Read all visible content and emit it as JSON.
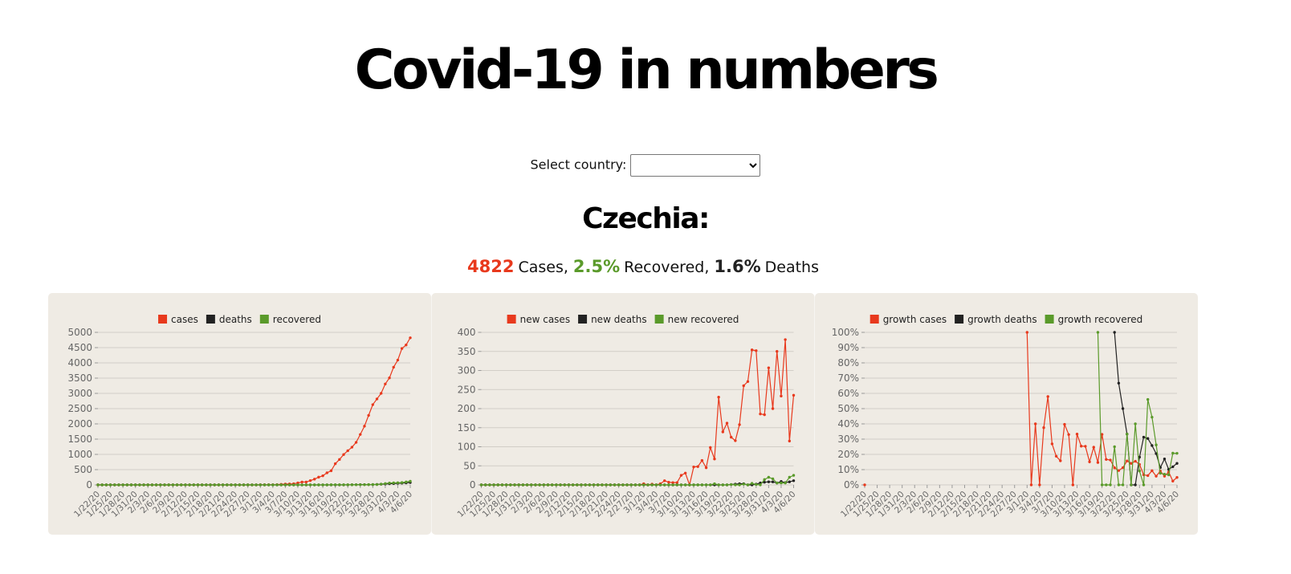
{
  "page": {
    "title": "Covid-19 in numbers",
    "select_label": "Select country:",
    "country": "Czechia:",
    "summary": [
      {
        "value": "4822",
        "text": "Cases,"
      },
      {
        "value": "2.5%",
        "text": "Recovered,"
      },
      {
        "value": "1.6%",
        "text": "Deaths"
      }
    ]
  },
  "chart_data": [
    {
      "type": "line",
      "categories": [
        "1/22/20",
        null,
        null,
        "1/25/20",
        null,
        null,
        "1/28/20",
        null,
        null,
        "1/31/20",
        null,
        null,
        "2/3/20",
        null,
        null,
        "2/6/20",
        null,
        null,
        "2/9/20",
        null,
        null,
        "2/12/20",
        null,
        null,
        "2/15/20",
        null,
        null,
        "2/18/20",
        null,
        null,
        "2/21/20",
        null,
        null,
        "2/24/20",
        null,
        null,
        "2/27/20",
        null,
        null,
        "3/1/20",
        null,
        null,
        "3/4/20",
        null,
        null,
        "3/7/20",
        null,
        null,
        "3/10/20",
        null,
        null,
        "3/13/20",
        null,
        null,
        "3/16/20",
        null,
        null,
        "3/19/20",
        null,
        null,
        "3/22/20",
        null,
        null,
        "3/25/20",
        null,
        null,
        "3/28/20",
        null,
        null,
        "3/31/20",
        null,
        null,
        "4/3/20",
        null,
        null,
        "4/6/20"
      ],
      "series": [
        {
          "name": "cases",
          "color": "#e8391d",
          "values": [
            0,
            0,
            0,
            0,
            0,
            0,
            0,
            0,
            0,
            0,
            0,
            0,
            0,
            0,
            0,
            0,
            0,
            0,
            0,
            0,
            0,
            0,
            0,
            0,
            0,
            0,
            0,
            0,
            0,
            0,
            0,
            0,
            0,
            0,
            0,
            0,
            0,
            0,
            0,
            3,
            3,
            5,
            5,
            8,
            19,
            26,
            32,
            38,
            63,
            94,
            94,
            141,
            189,
            253,
            298,
            396,
            464,
            694,
            833,
            995,
            1120,
            1236,
            1394,
            1654,
            1925,
            2279,
            2631,
            2817,
            3001,
            3308,
            3508,
            3858,
            4091,
            4472,
            4587,
            4822
          ]
        },
        {
          "name": "deaths",
          "color": "#222222",
          "values": [
            0,
            0,
            0,
            0,
            0,
            0,
            0,
            0,
            0,
            0,
            0,
            0,
            0,
            0,
            0,
            0,
            0,
            0,
            0,
            0,
            0,
            0,
            0,
            0,
            0,
            0,
            0,
            0,
            0,
            0,
            0,
            0,
            0,
            0,
            0,
            0,
            0,
            0,
            0,
            0,
            0,
            0,
            0,
            0,
            0,
            0,
            0,
            0,
            0,
            0,
            0,
            0,
            0,
            0,
            0,
            0,
            0,
            0,
            0,
            0,
            1,
            3,
            6,
            9,
            9,
            9,
            11,
            16,
            23,
            31,
            39,
            44,
            53,
            59,
            67,
            78
          ]
        },
        {
          "name": "recovered",
          "color": "#5a9a2a",
          "values": [
            0,
            0,
            0,
            0,
            0,
            0,
            0,
            0,
            0,
            0,
            0,
            0,
            0,
            0,
            0,
            0,
            0,
            0,
            0,
            0,
            0,
            0,
            0,
            0,
            0,
            0,
            0,
            0,
            0,
            0,
            0,
            0,
            0,
            0,
            0,
            0,
            0,
            0,
            0,
            0,
            0,
            0,
            0,
            0,
            0,
            0,
            0,
            0,
            0,
            0,
            0,
            0,
            0,
            0,
            0,
            0,
            3,
            3,
            3,
            3,
            4,
            4,
            4,
            6,
            6,
            10,
            11,
            11,
            25,
            45,
            61,
            66,
            71,
            76,
            96,
            121
          ]
        }
      ],
      "ylim": [
        0,
        5000
      ],
      "yticks": [
        0,
        500,
        1000,
        1500,
        2000,
        2500,
        3000,
        3500,
        4000,
        4500,
        5000
      ],
      "grid": true
    },
    {
      "type": "line",
      "categories": [
        "1/22/20",
        null,
        null,
        "1/25/20",
        null,
        null,
        "1/28/20",
        null,
        null,
        "1/31/20",
        null,
        null,
        "2/3/20",
        null,
        null,
        "2/6/20",
        null,
        null,
        "2/9/20",
        null,
        null,
        "2/12/20",
        null,
        null,
        "2/15/20",
        null,
        null,
        "2/18/20",
        null,
        null,
        "2/21/20",
        null,
        null,
        "2/24/20",
        null,
        null,
        "2/27/20",
        null,
        null,
        "3/1/20",
        null,
        null,
        "3/4/20",
        null,
        null,
        "3/7/20",
        null,
        null,
        "3/10/20",
        null,
        null,
        "3/13/20",
        null,
        null,
        "3/16/20",
        null,
        null,
        "3/19/20",
        null,
        null,
        "3/22/20",
        null,
        null,
        "3/25/20",
        null,
        null,
        "3/28/20",
        null,
        null,
        "3/31/20",
        null,
        null,
        "4/3/20",
        null,
        null,
        "4/6/20"
      ],
      "series": [
        {
          "name": "new cases",
          "color": "#e8391d",
          "values": [
            0,
            0,
            0,
            0,
            0,
            0,
            0,
            0,
            0,
            0,
            0,
            0,
            0,
            0,
            0,
            0,
            0,
            0,
            0,
            0,
            0,
            0,
            0,
            0,
            0,
            0,
            0,
            0,
            0,
            0,
            0,
            0,
            0,
            0,
            0,
            0,
            0,
            0,
            0,
            3,
            0,
            2,
            0,
            3,
            11,
            7,
            6,
            6,
            25,
            31,
            0,
            47,
            48,
            64,
            45,
            98,
            68,
            230,
            139,
            162,
            125,
            116,
            158,
            260,
            271,
            354,
            352,
            186,
            184,
            307,
            200,
            350,
            233,
            381,
            115,
            235
          ]
        },
        {
          "name": "new deaths",
          "color": "#222222",
          "values": [
            0,
            0,
            0,
            0,
            0,
            0,
            0,
            0,
            0,
            0,
            0,
            0,
            0,
            0,
            0,
            0,
            0,
            0,
            0,
            0,
            0,
            0,
            0,
            0,
            0,
            0,
            0,
            0,
            0,
            0,
            0,
            0,
            0,
            0,
            0,
            0,
            0,
            0,
            0,
            0,
            0,
            0,
            0,
            0,
            0,
            0,
            0,
            0,
            0,
            0,
            0,
            0,
            0,
            0,
            0,
            0,
            0,
            0,
            0,
            0,
            1,
            2,
            3,
            3,
            0,
            0,
            2,
            5,
            7,
            8,
            8,
            5,
            9,
            6,
            8,
            11
          ]
        },
        {
          "name": "new recovered",
          "color": "#5a9a2a",
          "values": [
            0,
            0,
            0,
            0,
            0,
            0,
            0,
            0,
            0,
            0,
            0,
            0,
            0,
            0,
            0,
            0,
            0,
            0,
            0,
            0,
            0,
            0,
            0,
            0,
            0,
            0,
            0,
            0,
            0,
            0,
            0,
            0,
            0,
            0,
            0,
            0,
            0,
            0,
            0,
            0,
            0,
            0,
            0,
            0,
            0,
            0,
            0,
            0,
            0,
            0,
            0,
            0,
            0,
            0,
            0,
            0,
            3,
            0,
            0,
            0,
            1,
            0,
            0,
            2,
            0,
            4,
            1,
            0,
            14,
            20,
            16,
            5,
            5,
            5,
            20,
            25
          ]
        }
      ],
      "ylim": [
        0,
        400
      ],
      "yticks": [
        0,
        50,
        100,
        150,
        200,
        250,
        300,
        350,
        400
      ],
      "grid": true
    },
    {
      "type": "line",
      "categories": [
        "1/22/20",
        null,
        null,
        "1/25/20",
        null,
        null,
        "1/28/20",
        null,
        null,
        "1/31/20",
        null,
        null,
        "2/3/20",
        null,
        null,
        "2/6/20",
        null,
        null,
        "2/9/20",
        null,
        null,
        "2/12/20",
        null,
        null,
        "2/15/20",
        null,
        null,
        "2/18/20",
        null,
        null,
        "2/21/20",
        null,
        null,
        "2/24/20",
        null,
        null,
        "2/27/20",
        null,
        null,
        "3/1/20",
        null,
        null,
        "3/4/20",
        null,
        null,
        "3/7/20",
        null,
        null,
        "3/10/20",
        null,
        null,
        "3/13/20",
        null,
        null,
        "3/16/20",
        null,
        null,
        "3/19/20",
        null,
        null,
        "3/22/20",
        null,
        null,
        "3/25/20",
        null,
        null,
        "3/28/20",
        null,
        null,
        "3/31/20",
        null,
        null,
        "4/3/20",
        null,
        null,
        "4/6/20"
      ],
      "series": [
        {
          "name": "growth cases",
          "color": "#e8391d",
          "values": [
            0,
            null,
            null,
            null,
            null,
            null,
            null,
            null,
            null,
            null,
            null,
            null,
            null,
            null,
            null,
            null,
            null,
            null,
            null,
            null,
            null,
            null,
            null,
            null,
            null,
            null,
            null,
            null,
            null,
            null,
            null,
            null,
            null,
            null,
            null,
            null,
            null,
            null,
            null,
            100,
            0,
            40,
            0,
            37.5,
            57.9,
            26.9,
            18.8,
            15.8,
            39.7,
            33,
            0,
            33.3,
            25.4,
            25.3,
            15.1,
            24.7,
            14.7,
            33.1,
            16.7,
            16.3,
            11.2,
            9.4,
            11.3,
            15.7,
            14.1,
            15.5,
            13.4,
            6.6,
            6.1,
            9.3,
            5.7,
            9.1,
            5.7,
            8.5,
            2.5,
            4.9
          ]
        },
        {
          "name": "growth deaths",
          "color": "#222222",
          "values": [
            null,
            null,
            null,
            null,
            null,
            null,
            null,
            null,
            null,
            null,
            null,
            null,
            null,
            null,
            null,
            null,
            null,
            null,
            null,
            null,
            null,
            null,
            null,
            null,
            null,
            null,
            null,
            null,
            null,
            null,
            null,
            null,
            null,
            null,
            null,
            null,
            null,
            null,
            null,
            null,
            null,
            null,
            null,
            null,
            null,
            null,
            null,
            null,
            null,
            null,
            null,
            null,
            null,
            null,
            null,
            null,
            null,
            null,
            null,
            null,
            100,
            66.7,
            50,
            33.3,
            0,
            0,
            18.2,
            31.3,
            30.4,
            25.8,
            20.5,
            11.4,
            17,
            10.2,
            11.9,
            14.1
          ]
        },
        {
          "name": "growth recovered",
          "color": "#5a9a2a",
          "values": [
            null,
            null,
            null,
            null,
            null,
            null,
            null,
            null,
            null,
            null,
            null,
            null,
            null,
            null,
            null,
            null,
            null,
            null,
            null,
            null,
            null,
            null,
            null,
            null,
            null,
            null,
            null,
            null,
            null,
            null,
            null,
            null,
            null,
            null,
            null,
            null,
            null,
            null,
            null,
            null,
            null,
            null,
            null,
            null,
            null,
            null,
            null,
            null,
            null,
            null,
            null,
            null,
            null,
            null,
            null,
            null,
            100,
            0,
            0,
            0,
            25,
            0,
            0,
            33.3,
            0,
            40,
            9.1,
            0,
            56,
            44.4,
            26.2,
            7.6,
            7,
            6.6,
            20.8,
            20.7
          ]
        }
      ],
      "ylim": [
        0,
        100
      ],
      "yticks": [
        {
          "value": 0,
          "label": "0%"
        },
        {
          "value": 10,
          "label": "10%"
        },
        {
          "value": 20,
          "label": "20%"
        },
        {
          "value": 30,
          "label": "30%"
        },
        {
          "value": 40,
          "label": "40%"
        },
        {
          "value": 50,
          "label": "50%"
        },
        {
          "value": 60,
          "label": "60%"
        },
        {
          "value": 70,
          "label": "70%"
        },
        {
          "value": 80,
          "label": "80%"
        },
        {
          "value": 90,
          "label": "90%"
        },
        {
          "value": 100,
          "label": "100%"
        }
      ],
      "grid": true
    }
  ]
}
